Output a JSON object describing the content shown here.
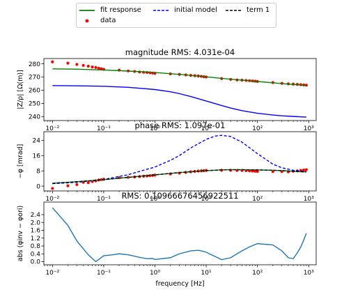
{
  "legend": {
    "items": [
      {
        "label": "fit response",
        "key": "fit",
        "color": "#008000",
        "style": "solid"
      },
      {
        "label": "initial model",
        "key": "init",
        "color": "#0000ff",
        "style": "dashed"
      },
      {
        "label": "term 1",
        "key": "term",
        "color": "#000000",
        "style": "dashed"
      },
      {
        "label": "data",
        "key": "data",
        "color": "#ff0000",
        "style": "marker"
      }
    ]
  },
  "chart_data": [
    {
      "type": "scatter",
      "title": "magnitude RMS: 4.031e-04",
      "xlabel": "",
      "ylabel": "|Z/ρ| [Ω(m)]",
      "xscale": "log",
      "xlim": [
        0.0068,
        1400
      ],
      "ylim": [
        237,
        284
      ],
      "yticks": [
        240,
        250,
        260,
        270,
        280
      ],
      "xticks": [
        "10⁻²",
        "10⁻¹",
        "10⁰",
        "10¹",
        "10²",
        "10³"
      ],
      "series": [
        {
          "name": "data",
          "kind": "points",
          "color": "#ff0000",
          "x": [
            0.01,
            0.02,
            0.03,
            0.04,
            0.05,
            0.06,
            0.07,
            0.08,
            0.09,
            0.1,
            0.2,
            0.3,
            0.4,
            0.5,
            0.6,
            0.7,
            0.8,
            0.9,
            1,
            2,
            3,
            4,
            5,
            6,
            7,
            8,
            9,
            10,
            20,
            30,
            40,
            50,
            60,
            70,
            80,
            90,
            100,
            200,
            300,
            400,
            500,
            600,
            700,
            800,
            900
          ],
          "y": [
            281.5,
            280.5,
            279.5,
            278.8,
            278.2,
            277.6,
            277.2,
            276.6,
            276.2,
            275.8,
            275.2,
            274.6,
            274.2,
            273.8,
            273.6,
            273.4,
            273.2,
            273.0,
            272.8,
            272.4,
            272.0,
            271.6,
            271.2,
            271.0,
            270.8,
            270.5,
            270.2,
            270.0,
            268.8,
            268.2,
            267.8,
            267.6,
            267.4,
            267.2,
            267.0,
            266.8,
            266.6,
            265.8,
            265.2,
            264.8,
            264.6,
            264.4,
            264.2,
            264.0,
            263.8
          ]
        },
        {
          "name": "fit response",
          "kind": "line",
          "color": "#008000",
          "style": "solid",
          "x": [
            0.01,
            0.03,
            0.1,
            0.3,
            1,
            3,
            10,
            30,
            100,
            300,
            900
          ],
          "y": [
            276.2,
            275.9,
            275.3,
            274.5,
            273.4,
            272.0,
            270.1,
            268.3,
            266.6,
            265.0,
            263.6
          ]
        },
        {
          "name": "initial model",
          "kind": "line",
          "color": "#0000ff",
          "style": "solid",
          "x": [
            0.01,
            0.03,
            0.1,
            0.3,
            1,
            2,
            3,
            5,
            10,
            20,
            30,
            50,
            100,
            200,
            300,
            500,
            900
          ],
          "y": [
            263.5,
            263.3,
            263.0,
            262.2,
            260.5,
            258.8,
            257.4,
            255.2,
            251.8,
            248.4,
            246.5,
            244.5,
            242.5,
            241.2,
            240.6,
            240.1,
            239.6
          ]
        }
      ]
    },
    {
      "type": "scatter",
      "title": "phase RMS: 1.097e-01",
      "xlabel": "",
      "ylabel": "−φ [mrad]",
      "xscale": "log",
      "xlim": [
        0.0068,
        1400
      ],
      "ylim": [
        -2.5,
        28.5
      ],
      "yticks": [
        0,
        8,
        16,
        24
      ],
      "xticks": [
        "10⁻²",
        "10⁻¹",
        "10⁰",
        "10¹",
        "10²",
        "10³"
      ],
      "series": [
        {
          "name": "data",
          "kind": "points",
          "color": "#ff0000",
          "x": [
            0.01,
            0.02,
            0.03,
            0.04,
            0.05,
            0.06,
            0.07,
            0.08,
            0.09,
            0.1,
            0.2,
            0.3,
            0.4,
            0.5,
            0.6,
            0.7,
            0.8,
            0.9,
            1,
            2,
            3,
            4,
            5,
            6,
            7,
            8,
            9,
            10,
            20,
            30,
            40,
            50,
            60,
            70,
            80,
            90,
            100,
            200,
            300,
            400,
            500,
            600,
            700,
            800,
            900
          ],
          "y": [
            -1.2,
            0.2,
            0.8,
            2.0,
            1.8,
            2.4,
            2.8,
            3.2,
            3.4,
            3.6,
            4.4,
            4.6,
            4.8,
            5.0,
            5.2,
            5.3,
            5.5,
            5.6,
            5.8,
            6.4,
            6.8,
            7.2,
            7.5,
            7.7,
            7.9,
            8.0,
            8.1,
            8.2,
            8.3,
            8.3,
            8.2,
            8.2,
            8.1,
            8.0,
            7.9,
            7.8,
            7.7,
            7.6,
            7.6,
            7.5,
            7.8,
            8.0,
            8.2,
            8.4,
            8.6
          ]
        },
        {
          "name": "fit response",
          "kind": "line",
          "color": "#008000",
          "style": "solid",
          "x": [
            0.01,
            0.03,
            0.1,
            0.3,
            1,
            3,
            10,
            20,
            30,
            50,
            100,
            200,
            300,
            500,
            900
          ],
          "y": [
            1.5,
            2.3,
            3.4,
            4.6,
            5.9,
            7.1,
            8.1,
            8.5,
            8.6,
            8.6,
            8.5,
            8.3,
            8.1,
            7.8,
            7.4
          ]
        },
        {
          "name": "initial model",
          "kind": "line",
          "color": "#0000ff",
          "style": "dashed",
          "x": [
            0.01,
            0.03,
            0.1,
            0.3,
            1,
            2,
            3,
            5,
            10,
            15,
            20,
            30,
            50,
            100,
            200,
            300,
            500,
            900
          ],
          "y": [
            1.3,
            2.0,
            3.5,
            6.0,
            10.0,
            13.5,
            16.0,
            20.0,
            24.5,
            26.2,
            26.6,
            26.0,
            23.0,
            17.0,
            11.5,
            9.6,
            8.3,
            7.6
          ]
        },
        {
          "name": "term 1",
          "kind": "line",
          "color": "#000000",
          "style": "dashed",
          "x": [
            0.01,
            0.03,
            0.1,
            0.3,
            1,
            3,
            10,
            20,
            30,
            50,
            100,
            200,
            300,
            500,
            900
          ],
          "y": [
            1.5,
            2.3,
            3.4,
            4.6,
            5.9,
            7.1,
            8.1,
            8.5,
            8.6,
            8.6,
            8.5,
            8.3,
            8.1,
            7.8,
            7.4
          ]
        }
      ]
    },
    {
      "type": "line",
      "title": "RMS: 0.10966676456922511",
      "xlabel": "frequency [Hz]",
      "ylabel": "abs (φinv − φori)",
      "xscale": "log",
      "xlim": [
        0.0068,
        1400
      ],
      "ylim": [
        -0.16,
        3.04
      ],
      "yticks": [
        0.0,
        0.4,
        0.8,
        1.2,
        1.6,
        2.0,
        2.4
      ],
      "yticklabels": [
        "0.0",
        "0.4",
        "0.8",
        "1.2",
        "1.6",
        "2.0",
        "2.4"
      ],
      "xticks": [
        "10⁻²",
        "10⁻¹",
        "10⁰",
        "10¹",
        "10²",
        "10³"
      ],
      "series": [
        {
          "name": "",
          "kind": "line",
          "color": "#1f77b4",
          "style": "solid",
          "x": [
            0.01,
            0.02,
            0.03,
            0.05,
            0.07,
            0.1,
            0.15,
            0.2,
            0.3,
            0.4,
            0.5,
            0.7,
            0.9,
            1,
            2,
            3,
            5,
            7,
            9,
            10,
            20,
            30,
            40,
            50,
            70,
            100,
            200,
            300,
            400,
            500,
            600,
            700,
            800,
            900
          ],
          "y": [
            2.75,
            1.85,
            1.05,
            0.35,
            0.0,
            0.3,
            0.35,
            0.4,
            0.35,
            0.28,
            0.22,
            0.15,
            0.16,
            0.11,
            0.2,
            0.4,
            0.55,
            0.58,
            0.52,
            0.48,
            0.1,
            0.2,
            0.4,
            0.55,
            0.75,
            0.92,
            0.85,
            0.55,
            0.2,
            0.15,
            0.45,
            0.75,
            1.1,
            1.45
          ]
        }
      ]
    }
  ]
}
